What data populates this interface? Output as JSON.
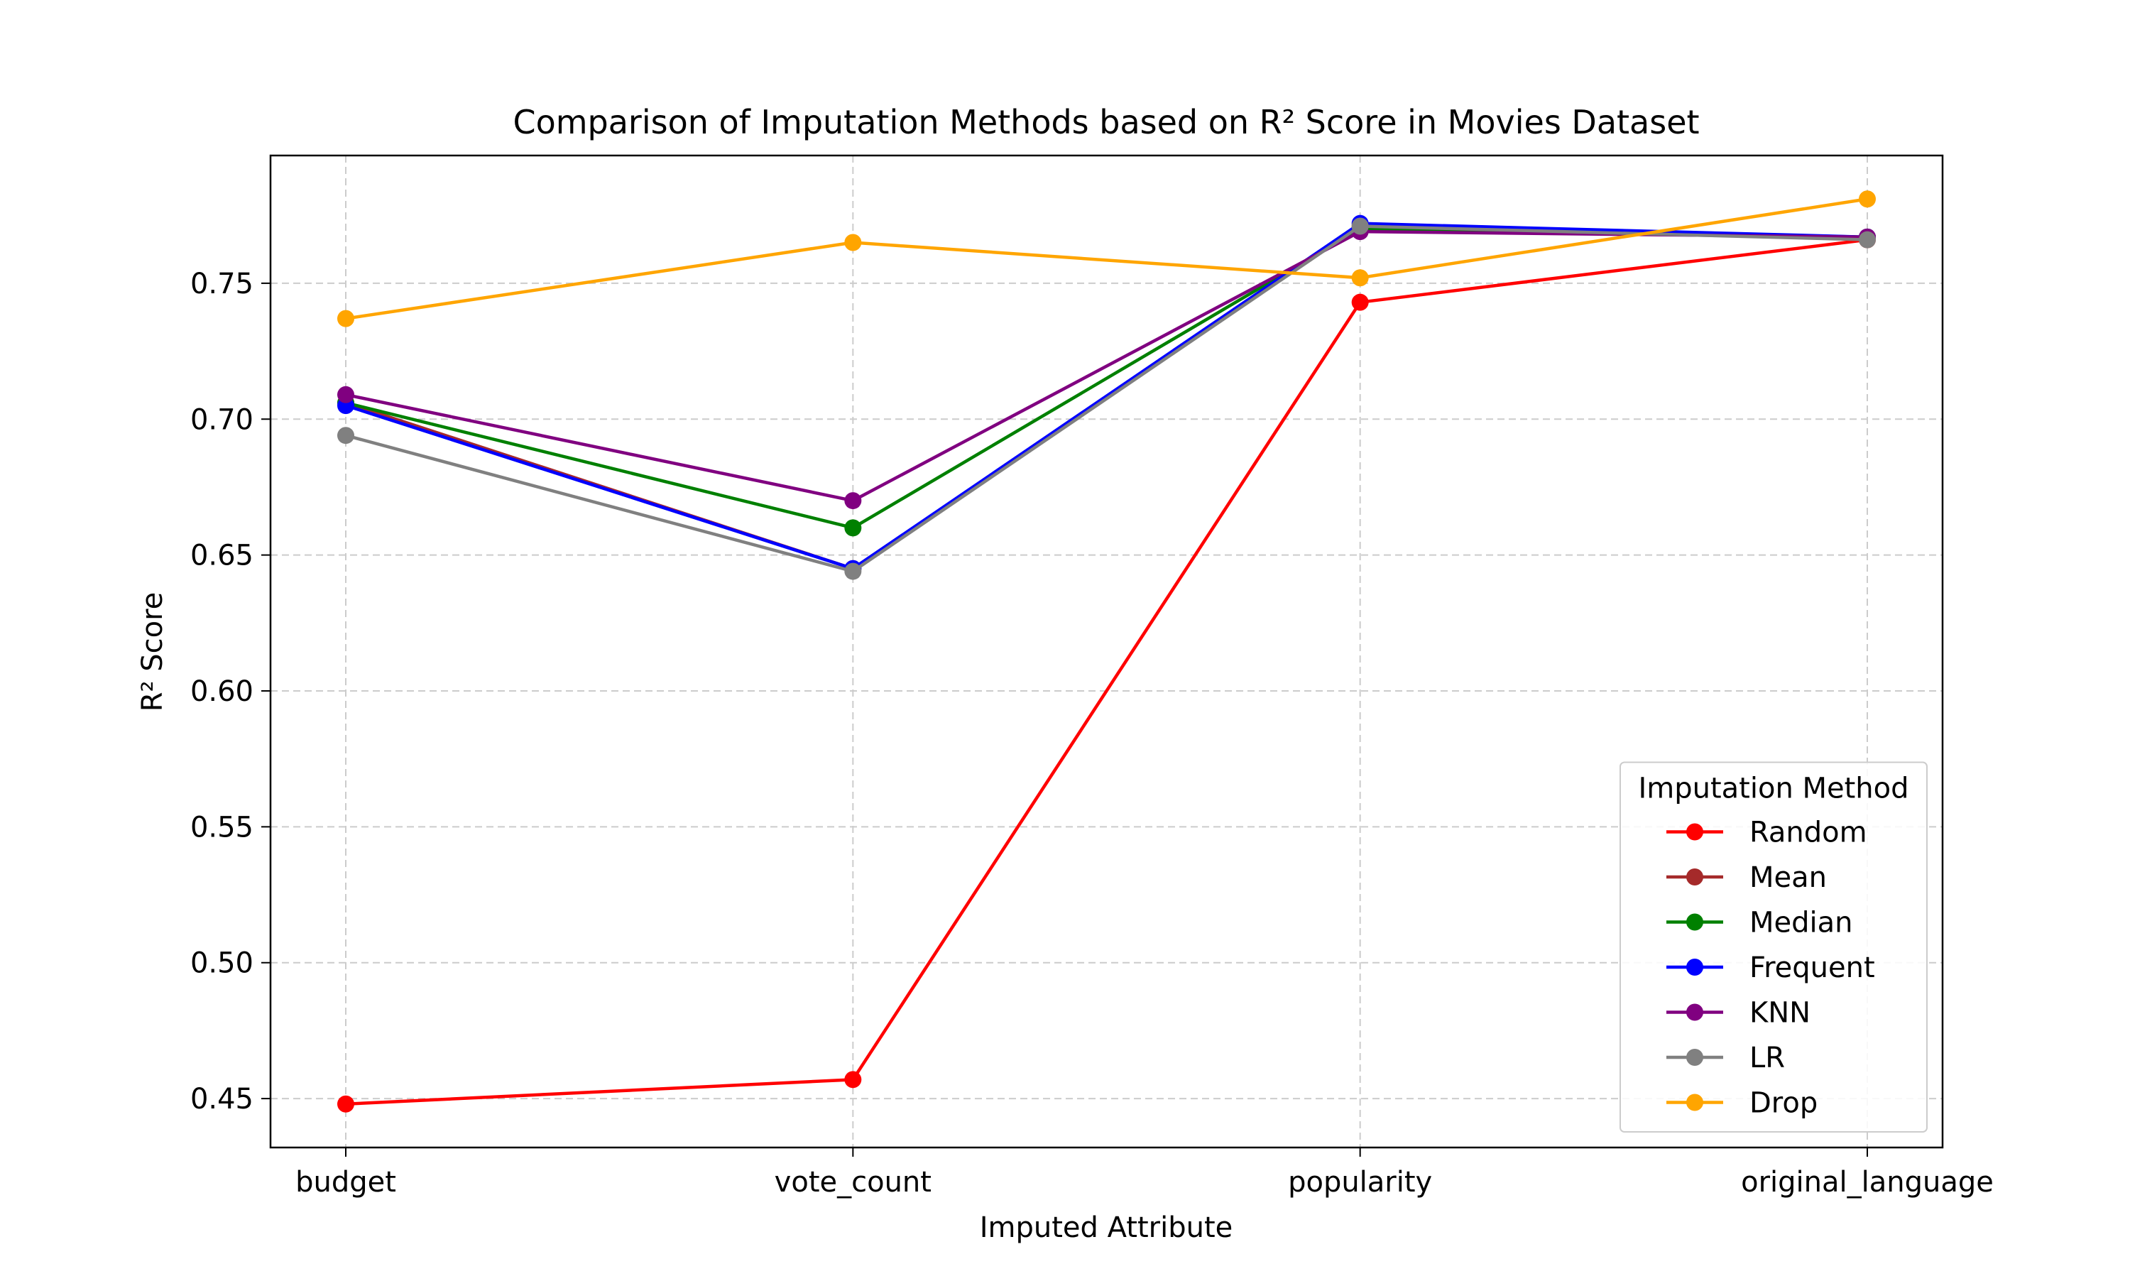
{
  "chart_data": {
    "type": "line",
    "title": "Comparison of Imputation Methods based on R² Score in Movies Dataset",
    "xlabel": "Imputed Attribute",
    "ylabel": "R² Score",
    "categories": [
      "budget",
      "vote_count",
      "popularity",
      "original_language"
    ],
    "ylim": [
      0.432,
      0.797
    ],
    "yticks": [
      0.45,
      0.5,
      0.55,
      0.6,
      0.65,
      0.7,
      0.75
    ],
    "ytick_labels": [
      "0.45",
      "0.50",
      "0.55",
      "0.60",
      "0.65",
      "0.70",
      "0.75"
    ],
    "grid": true,
    "legend": {
      "title": "Imputation Method",
      "position": "lower-right"
    },
    "series": [
      {
        "name": "Random",
        "color": "#ff0000",
        "values": [
          0.448,
          0.457,
          0.743,
          0.766
        ]
      },
      {
        "name": "Mean",
        "color": "#a52a2a",
        "values": [
          0.706,
          0.645,
          0.771,
          0.767
        ]
      },
      {
        "name": "Median",
        "color": "#008000",
        "values": [
          0.706,
          0.66,
          0.77,
          0.767
        ]
      },
      {
        "name": "Frequent",
        "color": "#0000ff",
        "values": [
          0.705,
          0.645,
          0.772,
          0.767
        ]
      },
      {
        "name": "KNN",
        "color": "#800080",
        "values": [
          0.709,
          0.67,
          0.769,
          0.767
        ]
      },
      {
        "name": "LR",
        "color": "#808080",
        "values": [
          0.694,
          0.644,
          0.771,
          0.766
        ]
      },
      {
        "name": "Drop",
        "color": "#ffa500",
        "values": [
          0.737,
          0.765,
          0.752,
          0.781
        ]
      }
    ]
  }
}
